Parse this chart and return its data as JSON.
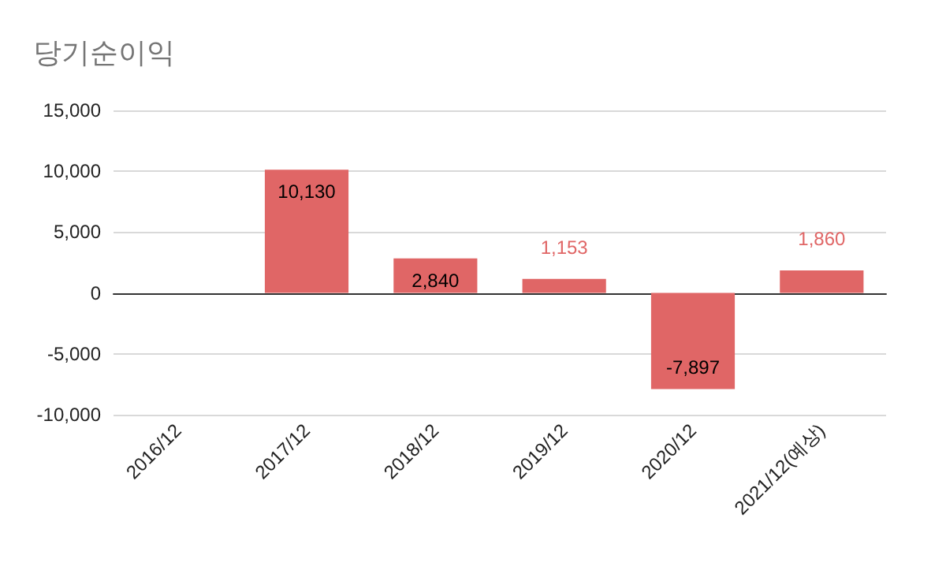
{
  "chart_data": {
    "type": "bar",
    "title": "당기순이익",
    "categories": [
      "2016/12",
      "2017/12",
      "2018/12",
      "2019/12",
      "2020/12",
      "2021/12(예상)"
    ],
    "values": [
      null,
      10130,
      2840,
      1153,
      -7897,
      1860
    ],
    "color": "#e06666",
    "value_labels": [
      null,
      "10,130",
      "2,840",
      "1,153",
      "-7,897",
      "1,860"
    ],
    "ylim": [
      -10000,
      15000
    ],
    "yticks": [
      {
        "value": -10000,
        "label": "-10,000"
      },
      {
        "value": -5000,
        "label": "-5,000"
      },
      0,
      {
        "value": 5000,
        "label": "5,000"
      },
      {
        "value": 10000,
        "label": "10,000"
      },
      {
        "value": 15000,
        "label": "15,000"
      }
    ],
    "grid": "y"
  }
}
